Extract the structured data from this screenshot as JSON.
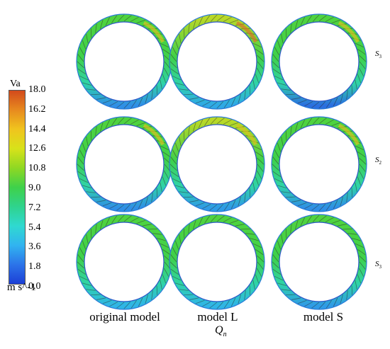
{
  "legend": {
    "title": "Va",
    "ticks": [
      "18.0",
      "16.2",
      "14.4",
      "12.6",
      "10.8",
      "9.0",
      "7.2",
      "5.4",
      "3.6",
      "1.8",
      "0.0"
    ],
    "unit": "m s^-1",
    "colors": [
      "#d24a1c",
      "#e78a1f",
      "#f0c41e",
      "#d8e21a",
      "#8fd823",
      "#3fd14a",
      "#2fd38d",
      "#2fd9d0",
      "#31b4f0",
      "#2c74e9",
      "#1c3fd6"
    ]
  },
  "columns": [
    "original model",
    "model L",
    "model S"
  ],
  "rows": [
    {
      "base": "S",
      "sub": "3"
    },
    {
      "base": "S",
      "sub": "2"
    },
    {
      "base": "S",
      "sub": "3"
    }
  ],
  "caption": {
    "base": "Q",
    "sub": "n"
  },
  "rings": [
    {
      "row": 0,
      "col": 0,
      "level": 0.55,
      "low": "#2f8fe6",
      "hot": 0.1
    },
    {
      "row": 0,
      "col": 1,
      "level": 0.65,
      "low": "#2fa9e6",
      "hot": 0.35
    },
    {
      "row": 0,
      "col": 2,
      "level": 0.55,
      "low": "#2b6fe0",
      "hot": 0.1
    },
    {
      "row": 1,
      "col": 0,
      "level": 0.55,
      "low": "#2f8fe6",
      "hot": 0.1
    },
    {
      "row": 1,
      "col": 1,
      "level": 0.6,
      "low": "#2f9be6",
      "hot": 0.25
    },
    {
      "row": 1,
      "col": 2,
      "level": 0.5,
      "low": "#2f8fe6",
      "hot": 0.05
    },
    {
      "row": 2,
      "col": 0,
      "level": 0.45,
      "low": "#2fb5e6",
      "hot": 0.0
    },
    {
      "row": 2,
      "col": 1,
      "level": 0.45,
      "low": "#2fb5e6",
      "hot": 0.0
    },
    {
      "row": 2,
      "col": 2,
      "level": 0.4,
      "low": "#2f9be6",
      "hot": 0.0
    }
  ]
}
